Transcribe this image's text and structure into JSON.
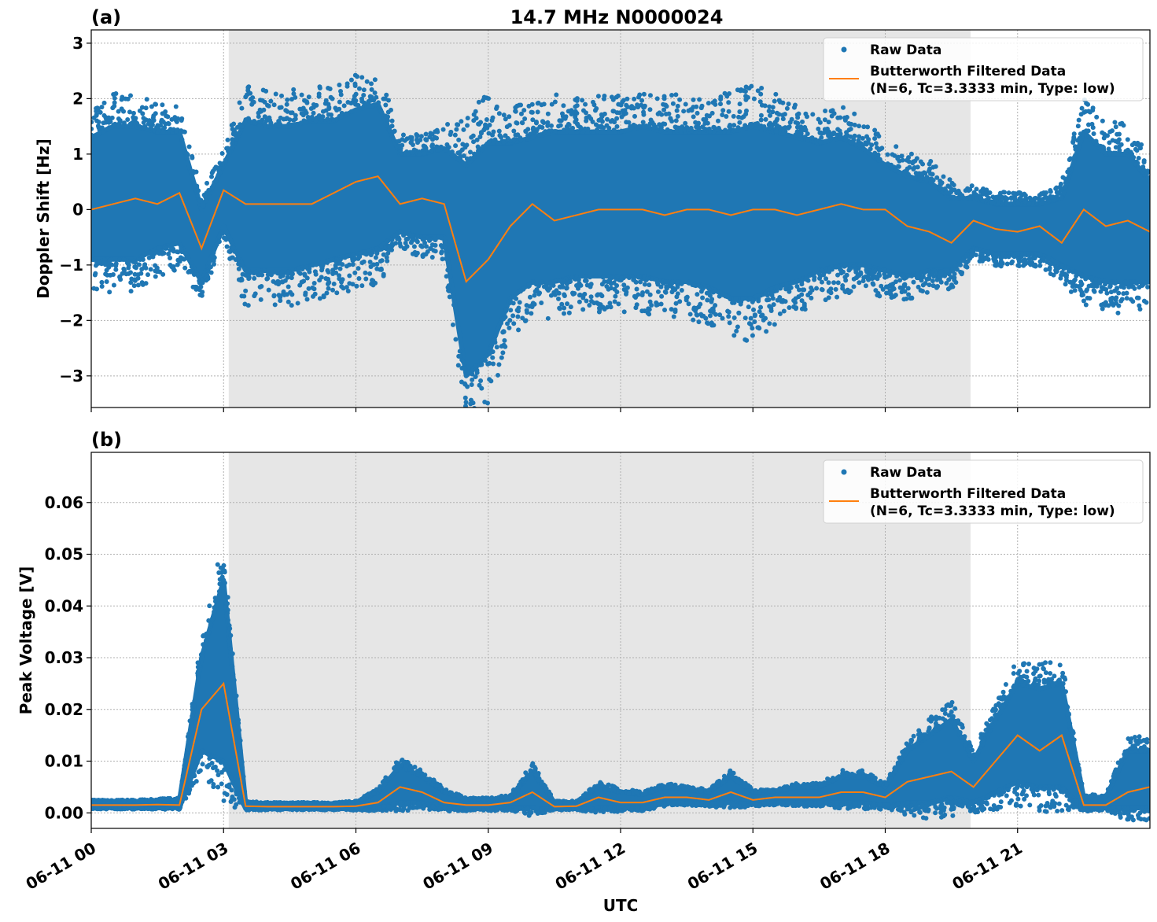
{
  "title": "14.7 MHz N0000024",
  "xlabel": "UTC",
  "chart_data": [
    {
      "panel": "(a)",
      "type": "scatter+line",
      "ylabel": "Doppler Shift [Hz]",
      "ylim": [
        -3.57,
        3.24
      ],
      "yticks": [
        -3,
        -2,
        -1,
        0,
        1,
        2,
        3
      ],
      "ytick_labels": [
        "−3",
        "−2",
        "−1",
        "0",
        "1",
        "2",
        "3"
      ],
      "xlim_hours": [
        0,
        24
      ],
      "grid": true,
      "legend_position": "top-right",
      "shaded_span": [
        "06-11 03:07",
        "06-11 19:56"
      ],
      "x_hours": [
        0,
        0.5,
        1,
        1.5,
        2,
        2.5,
        3,
        3.5,
        4,
        4.5,
        5,
        5.5,
        6,
        6.5,
        7,
        7.5,
        8,
        8.5,
        9,
        9.5,
        10,
        10.5,
        11,
        11.5,
        12,
        12.5,
        13,
        13.5,
        14,
        14.5,
        15,
        15.5,
        16,
        16.5,
        17,
        17.5,
        18,
        18.5,
        19,
        19.5,
        20,
        20.5,
        21,
        21.5,
        22,
        22.5,
        23,
        23.5,
        24
      ],
      "series": [
        {
          "name": "Raw Data",
          "kind": "scatter",
          "color": "#1f77b4",
          "lower": [
            -0.9,
            -0.9,
            -0.9,
            -0.7,
            -0.6,
            -1.3,
            -0.3,
            -1.1,
            -1.1,
            -1.1,
            -1.0,
            -0.9,
            -0.8,
            -0.7,
            -0.4,
            -0.5,
            -0.5,
            -3.0,
            -2.6,
            -1.6,
            -1.3,
            -1.3,
            -1.2,
            -1.2,
            -1.2,
            -1.2,
            -1.3,
            -1.3,
            -1.4,
            -1.6,
            -1.6,
            -1.4,
            -1.3,
            -1.1,
            -1.0,
            -1.0,
            -1.1,
            -1.2,
            -1.1,
            -1.1,
            -0.7,
            -0.8,
            -0.8,
            -0.8,
            -1.0,
            -1.2,
            -1.3,
            -1.3,
            -1.3
          ],
          "upper": [
            1.3,
            1.5,
            1.5,
            1.4,
            1.4,
            0.0,
            0.8,
            1.6,
            1.5,
            1.5,
            1.6,
            1.6,
            1.8,
            1.9,
            1.0,
            1.0,
            1.1,
            0.8,
            1.2,
            1.2,
            1.3,
            1.4,
            1.4,
            1.4,
            1.4,
            1.5,
            1.4,
            1.4,
            1.4,
            1.4,
            1.5,
            1.4,
            1.3,
            1.2,
            1.3,
            1.1,
            0.8,
            0.6,
            0.5,
            0.2,
            0.2,
            0.1,
            0.1,
            0.1,
            0.2,
            1.4,
            1.0,
            1.0,
            0.5
          ]
        },
        {
          "name": "Butterworth Filtered Data\n(N=6, Tc=3.3333 min, Type: low)",
          "kind": "line",
          "color": "#ff7f0e",
          "values": [
            0.0,
            0.1,
            0.2,
            0.1,
            0.3,
            -0.7,
            0.35,
            0.1,
            0.1,
            0.1,
            0.1,
            0.3,
            0.5,
            0.6,
            0.1,
            0.2,
            0.1,
            -1.3,
            -0.9,
            -0.3,
            0.1,
            -0.2,
            -0.1,
            0.0,
            0.0,
            0.0,
            -0.1,
            0.0,
            0.0,
            -0.1,
            0.0,
            0.0,
            -0.1,
            0.0,
            0.1,
            0.0,
            0.0,
            -0.3,
            -0.4,
            -0.6,
            -0.2,
            -0.35,
            -0.4,
            -0.3,
            -0.6,
            0.0,
            -0.3,
            -0.2,
            -0.4
          ]
        }
      ],
      "legend": [
        "Raw Data",
        "Butterworth Filtered Data",
        "(N=6, Tc=3.3333 min, Type: low)"
      ]
    },
    {
      "panel": "(b)",
      "type": "scatter+line",
      "ylabel": "Peak Voltage [V]",
      "ylim": [
        -0.003,
        0.0697
      ],
      "yticks": [
        0,
        0.01,
        0.02,
        0.03,
        0.04,
        0.05,
        0.06
      ],
      "ytick_labels": [
        "0.00",
        "0.01",
        "0.02",
        "0.03",
        "0.04",
        "0.05",
        "0.06"
      ],
      "xlim_hours": [
        0,
        24
      ],
      "xtick_labels": [
        "06-11 00",
        "06-11 03",
        "06-11 06",
        "06-11 09",
        "06-11 12",
        "06-11 15",
        "06-11 18",
        "06-11 21"
      ],
      "grid": true,
      "legend_position": "top-right",
      "shaded_span": [
        "06-11 03:07",
        "06-11 19:56"
      ],
      "x_hours": [
        0,
        0.5,
        1,
        1.5,
        2,
        2.5,
        3,
        3.5,
        4,
        4.5,
        5,
        5.5,
        6,
        6.5,
        7,
        7.5,
        8,
        8.5,
        9,
        9.5,
        10,
        10.5,
        11,
        11.5,
        12,
        12.5,
        13,
        13.5,
        14,
        14.5,
        15,
        15.5,
        16,
        16.5,
        17,
        17.5,
        18,
        18.5,
        19,
        19.5,
        20,
        20.5,
        21,
        21.5,
        22,
        22.5,
        23,
        23.5,
        24
      ],
      "series": [
        {
          "name": "Raw Data",
          "kind": "scatter",
          "color": "#1f77b4",
          "lower": [
            0.001,
            0.001,
            0.001,
            0.001,
            0.001,
            0.012,
            0.01,
            0.0008,
            0.0008,
            0.0008,
            0.0008,
            0.0008,
            0.0008,
            0.001,
            0.002,
            0.002,
            0.001,
            0.0008,
            0.0008,
            0.001,
            0.001,
            0.0008,
            0.0008,
            0.001,
            0.001,
            0.001,
            0.002,
            0.002,
            0.0018,
            0.002,
            0.0018,
            0.002,
            0.002,
            0.002,
            0.002,
            0.002,
            0.0015,
            0.002,
            0.002,
            0.003,
            0.002,
            0.004,
            0.006,
            0.005,
            0.005,
            0.0008,
            0.001,
            0.001,
            0.001
          ],
          "upper": [
            0.0022,
            0.0022,
            0.0022,
            0.0024,
            0.0025,
            0.03,
            0.045,
            0.002,
            0.0018,
            0.0018,
            0.0018,
            0.0018,
            0.002,
            0.004,
            0.009,
            0.007,
            0.004,
            0.0025,
            0.0025,
            0.003,
            0.008,
            0.002,
            0.002,
            0.005,
            0.004,
            0.0035,
            0.005,
            0.0045,
            0.004,
            0.007,
            0.004,
            0.004,
            0.005,
            0.005,
            0.007,
            0.007,
            0.005,
            0.012,
            0.015,
            0.018,
            0.01,
            0.018,
            0.025,
            0.024,
            0.025,
            0.003,
            0.003,
            0.012,
            0.012
          ]
        },
        {
          "name": "Butterworth Filtered Data\n(N=6, Tc=3.3333 min, Type: low)",
          "kind": "line",
          "color": "#ff7f0e",
          "values": [
            0.0015,
            0.0015,
            0.0015,
            0.0016,
            0.0015,
            0.02,
            0.025,
            0.0013,
            0.0012,
            0.0012,
            0.0012,
            0.0012,
            0.0013,
            0.002,
            0.005,
            0.004,
            0.002,
            0.0015,
            0.0015,
            0.002,
            0.004,
            0.0012,
            0.0013,
            0.003,
            0.002,
            0.002,
            0.003,
            0.003,
            0.0025,
            0.004,
            0.0025,
            0.003,
            0.003,
            0.003,
            0.004,
            0.004,
            0.003,
            0.006,
            0.007,
            0.008,
            0.005,
            0.01,
            0.015,
            0.012,
            0.015,
            0.0015,
            0.0015,
            0.004,
            0.005
          ]
        }
      ],
      "legend": [
        "Raw Data",
        "Butterworth Filtered Data",
        "(N=6, Tc=3.3333 min, Type: low)"
      ]
    }
  ]
}
